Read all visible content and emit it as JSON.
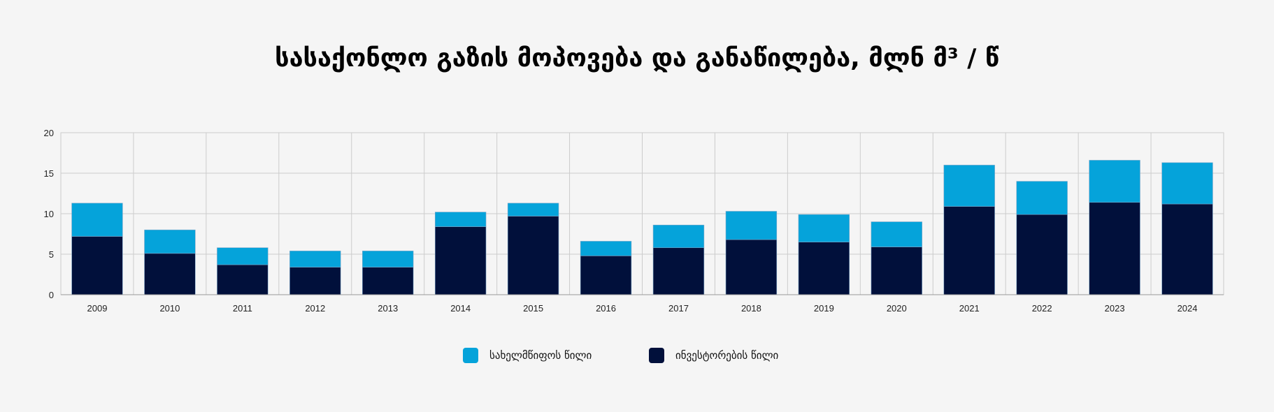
{
  "chart_data": {
    "type": "bar",
    "stacked": true,
    "title": "სასაქონლო გაზის მოპოვება და განაწილება, მლნ მ³ / წ",
    "xlabel": "",
    "ylabel": "",
    "ylim": [
      0,
      20
    ],
    "yticks": [
      0,
      5,
      10,
      15,
      20
    ],
    "categories": [
      "2009",
      "2010",
      "2011",
      "2012",
      "2013",
      "2014",
      "2015",
      "2016",
      "2017",
      "2018",
      "2019",
      "2020",
      "2021",
      "2022",
      "2023",
      "2024"
    ],
    "series": [
      {
        "name": "ინვესტორების წილი",
        "color": "#01103b",
        "values": [
          7.2,
          5.1,
          3.7,
          3.4,
          3.4,
          8.4,
          9.7,
          4.8,
          5.8,
          6.8,
          6.5,
          5.9,
          10.9,
          9.9,
          11.4,
          11.2
        ]
      },
      {
        "name": "სახელმწიფოს წილი",
        "color": "#05a3da",
        "values": [
          4.1,
          2.9,
          2.1,
          2.0,
          2.0,
          1.8,
          1.6,
          1.8,
          2.8,
          3.5,
          3.4,
          3.1,
          5.1,
          4.1,
          5.2,
          5.1
        ]
      }
    ],
    "legend": {
      "position": "bottom-center",
      "items": [
        {
          "label": "სახელმწიფოს წილი",
          "color": "#05a3da"
        },
        {
          "label": "ინვესტორების წილი",
          "color": "#01103b"
        }
      ]
    },
    "grid": true
  }
}
